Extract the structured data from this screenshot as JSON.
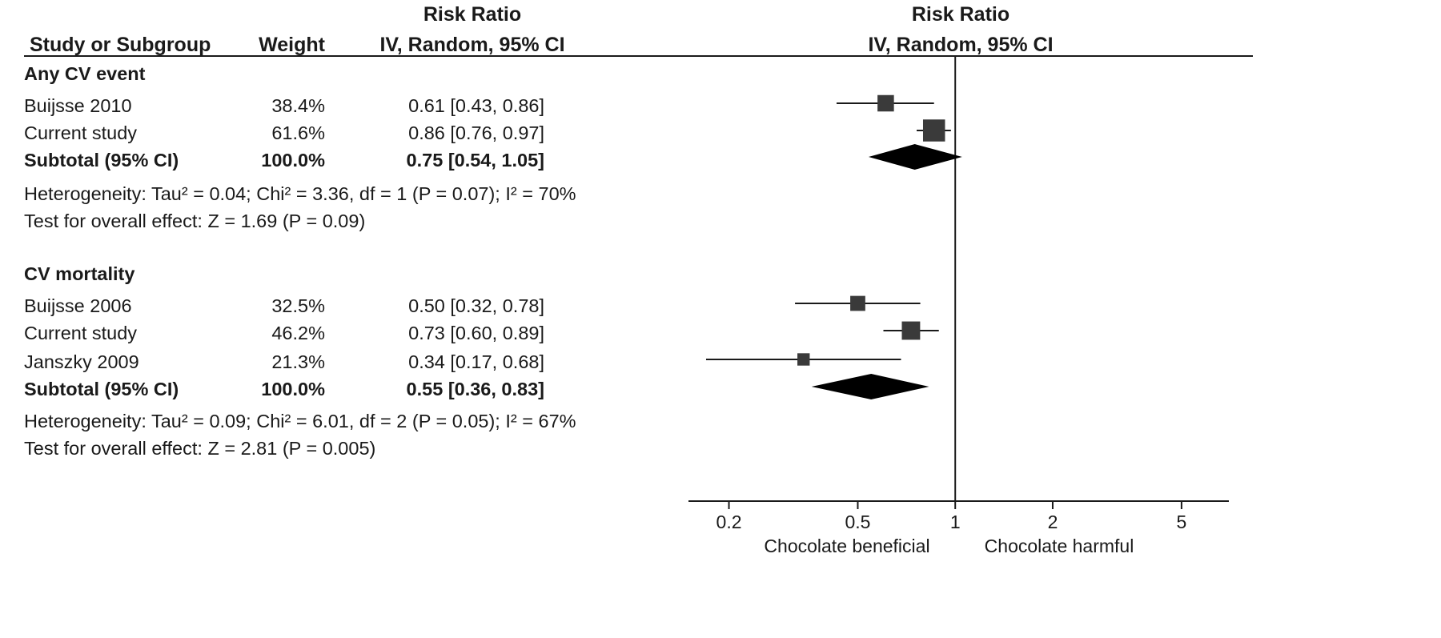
{
  "header": {
    "study_col": "Study or Subgroup",
    "weight_col": "Weight",
    "effect_title": "Risk Ratio",
    "effect_method": "IV, Random, 95% CI",
    "plot_title": "Risk Ratio",
    "plot_method": "IV, Random, 95% CI"
  },
  "subgroups": [
    {
      "name": "Any CV event",
      "studies": [
        {
          "study": "Buijsse 2010",
          "weight": "38.4%",
          "ci_text": "0.61 [0.43, 0.86]"
        },
        {
          "study": "Current study",
          "weight": "61.6%",
          "ci_text": "0.86 [0.76, 0.97]"
        }
      ],
      "subtotal": {
        "label": "Subtotal (95% CI)",
        "weight": "100.0%",
        "ci_text": "0.75 [0.54, 1.05]"
      },
      "heterogeneity": "Heterogeneity: Tau² = 0.04; Chi² = 3.36, df = 1 (P = 0.07); I² = 70%",
      "overall_effect": "Test for overall effect: Z = 1.69 (P = 0.09)"
    },
    {
      "name": "CV mortality",
      "studies": [
        {
          "study": "Buijsse 2006",
          "weight": "32.5%",
          "ci_text": "0.50 [0.32, 0.78]"
        },
        {
          "study": "Current study",
          "weight": "46.2%",
          "ci_text": "0.73 [0.60, 0.89]"
        },
        {
          "study": "Janszky 2009",
          "weight": "21.3%",
          "ci_text": "0.34 [0.17, 0.68]"
        }
      ],
      "subtotal": {
        "label": "Subtotal (95% CI)",
        "weight": "100.0%",
        "ci_text": "0.55 [0.36, 0.83]"
      },
      "heterogeneity": "Heterogeneity: Tau² = 0.09; Chi² = 6.01, df = 2 (P = 0.05); I² = 67%",
      "overall_effect": "Test for overall effect: Z = 2.81 (P = 0.005)"
    }
  ],
  "chart_data": {
    "type": "forest",
    "scale": "log",
    "x_range": [
      0.15,
      7
    ],
    "null_value": 1,
    "ticks": [
      0.2,
      0.5,
      1,
      2,
      5
    ],
    "tick_labels": [
      "0.2",
      "0.5",
      "1",
      "2",
      "5"
    ],
    "favours_left": "Chocolate beneficial",
    "favours_right": "Chocolate harmful",
    "series": [
      {
        "kind": "study",
        "subgroup": "Any CV event",
        "study": "Buijsse 2010",
        "rr": 0.61,
        "lo": 0.43,
        "hi": 0.86,
        "weight": 38.4
      },
      {
        "kind": "study",
        "subgroup": "Any CV event",
        "study": "Current study",
        "rr": 0.86,
        "lo": 0.76,
        "hi": 0.97,
        "weight": 61.6
      },
      {
        "kind": "subtotal",
        "subgroup": "Any CV event",
        "rr": 0.75,
        "lo": 0.54,
        "hi": 1.05
      },
      {
        "kind": "study",
        "subgroup": "CV mortality",
        "study": "Buijsse 2006",
        "rr": 0.5,
        "lo": 0.32,
        "hi": 0.78,
        "weight": 32.5
      },
      {
        "kind": "study",
        "subgroup": "CV mortality",
        "study": "Current study",
        "rr": 0.73,
        "lo": 0.6,
        "hi": 0.89,
        "weight": 46.2
      },
      {
        "kind": "study",
        "subgroup": "CV mortality",
        "study": "Janszky 2009",
        "rr": 0.34,
        "lo": 0.17,
        "hi": 0.68,
        "weight": 21.3
      },
      {
        "kind": "subtotal",
        "subgroup": "CV mortality",
        "rr": 0.55,
        "lo": 0.36,
        "hi": 0.83
      }
    ]
  }
}
